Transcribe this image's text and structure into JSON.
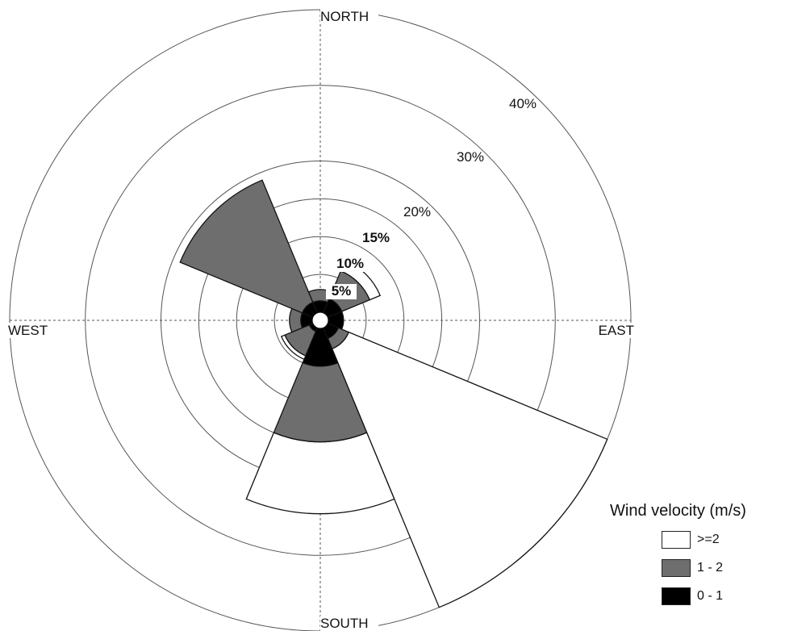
{
  "chart_data": {
    "type": "wind-rose",
    "directions": [
      "NORTH",
      "EAST",
      "SOUTH",
      "WEST"
    ],
    "radial_ticks": [
      {
        "value": 5,
        "label": "5%"
      },
      {
        "value": 10,
        "label": "10%"
      },
      {
        "value": 15,
        "label": "15%"
      },
      {
        "value": 20,
        "label": "20%"
      },
      {
        "value": 30,
        "label": "30%"
      },
      {
        "value": 40,
        "label": "40%"
      }
    ],
    "rmax": 40,
    "bins": [
      "0 - 1",
      "1 - 2",
      ">=2"
    ],
    "colors": {
      "0 - 1": "#000000",
      "1 - 2": "#6e6e6e",
      ">=2": "#ffffff"
    },
    "sectors": [
      {
        "direction_deg": 0,
        "cumulative": [
          1.5,
          3.0,
          3.0
        ]
      },
      {
        "direction_deg": 45,
        "cumulative": [
          2.0,
          6.0,
          7.5
        ]
      },
      {
        "direction_deg": 90,
        "cumulative": [
          2.0,
          2.0,
          2.0
        ]
      },
      {
        "direction_deg": 135,
        "cumulative": [
          1.5,
          3.0,
          40.0
        ]
      },
      {
        "direction_deg": 180,
        "cumulative": [
          5.0,
          15.0,
          24.5
        ]
      },
      {
        "direction_deg": 225,
        "cumulative": [
          0.5,
          4.0,
          4.5
        ]
      },
      {
        "direction_deg": 270,
        "cumulative": [
          1.5,
          3.0,
          3.0
        ]
      },
      {
        "direction_deg": 315,
        "cumulative": [
          1.5,
          19.0,
          19.0
        ]
      }
    ],
    "legend": {
      "title": "Wind velocity (m/s)",
      "placement": "bottom-right"
    }
  }
}
